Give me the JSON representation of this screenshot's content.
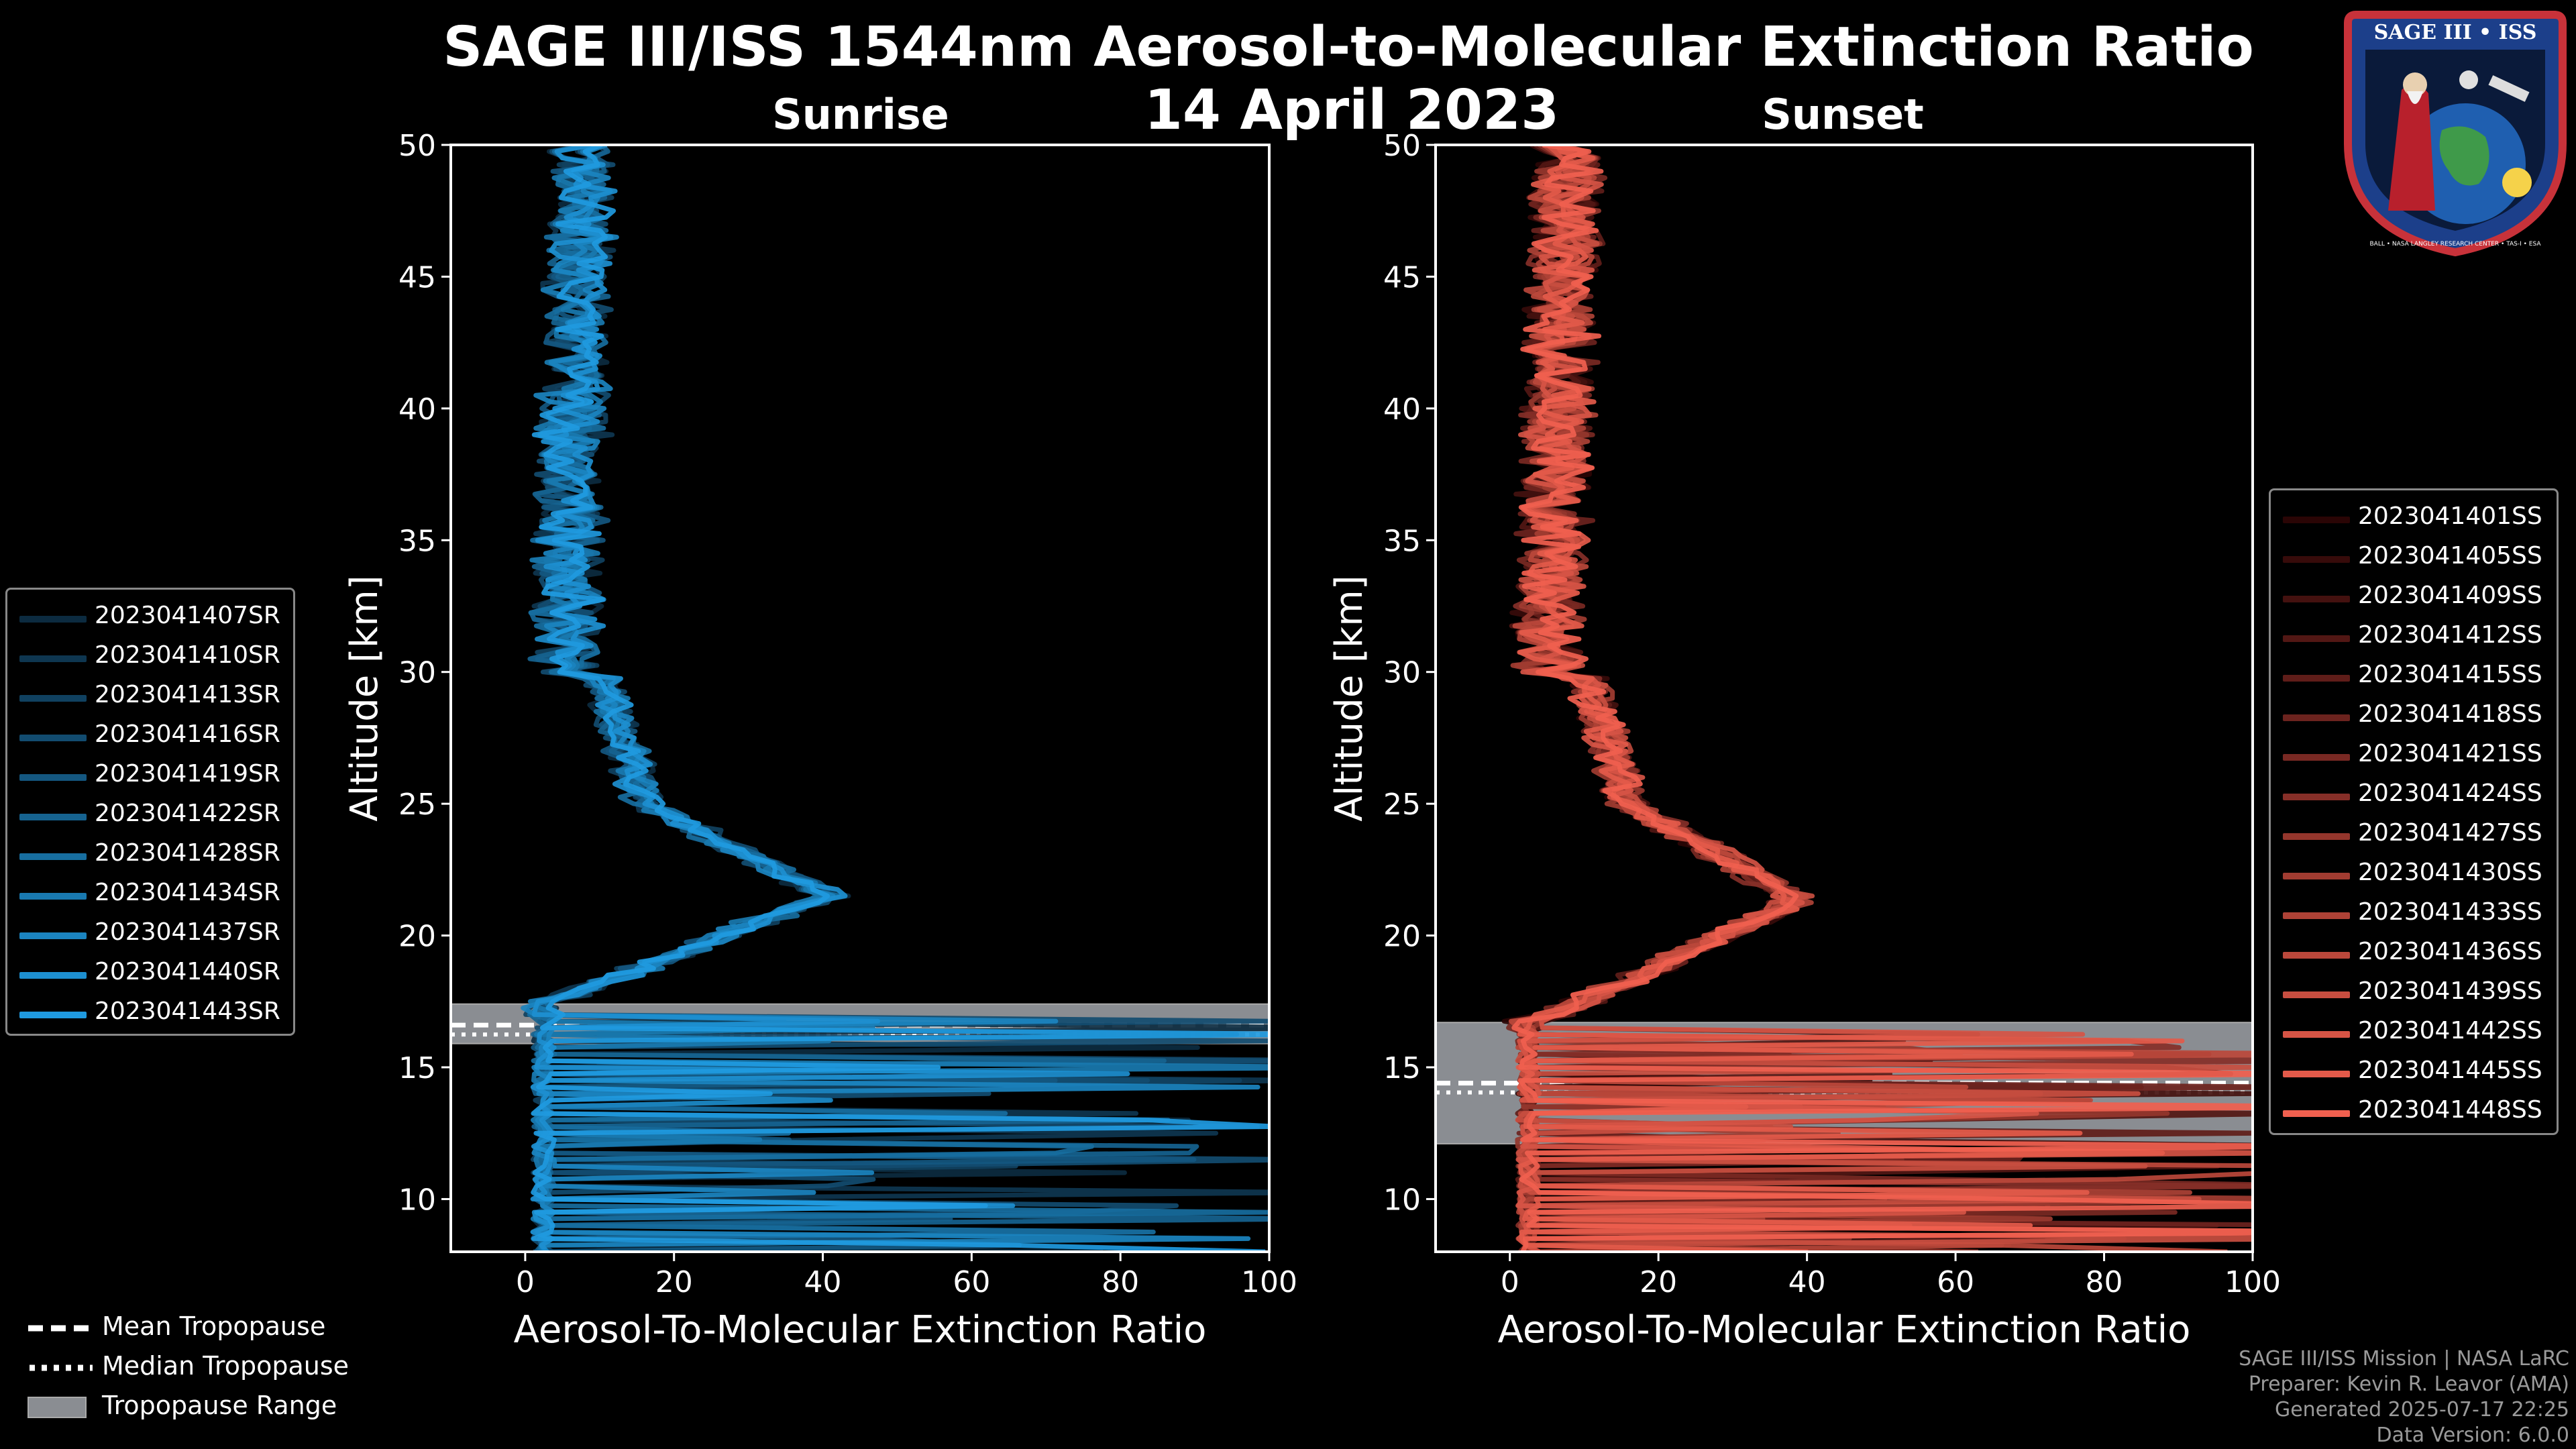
{
  "chart_data": {
    "type": "line",
    "title": "SAGE III/ISS 1544nm Aerosol-to-Molecular Extinction Ratio",
    "date": "14 April 2023",
    "panels": [
      {
        "name": "Sunrise",
        "title": "Sunrise",
        "xlabel": "Aerosol-To-Molecular Extinction Ratio",
        "ylabel": "Altitude [km]",
        "xlim": [
          -10,
          100
        ],
        "ylim": [
          8,
          50
        ],
        "xticks": [
          0,
          20,
          40,
          60,
          80,
          100
        ],
        "yticks": [
          10,
          15,
          20,
          25,
          30,
          35,
          40,
          45,
          50
        ],
        "tropopause": {
          "mean": 16.6,
          "median": 16.5,
          "range": [
            15.9,
            17.4
          ]
        },
        "profile_peak": {
          "altitude_km": 21.5,
          "ratio": 41
        },
        "series_color_start": "#0c2b40",
        "series_color_end": "#1f9ae0",
        "series": [
          {
            "name": "2023041407SR"
          },
          {
            "name": "2023041410SR"
          },
          {
            "name": "2023041413SR"
          },
          {
            "name": "2023041416SR"
          },
          {
            "name": "2023041419SR"
          },
          {
            "name": "2023041422SR"
          },
          {
            "name": "2023041428SR"
          },
          {
            "name": "2023041434SR"
          },
          {
            "name": "2023041437SR"
          },
          {
            "name": "2023041440SR"
          },
          {
            "name": "2023041443SR"
          }
        ]
      },
      {
        "name": "Sunset",
        "title": "Sunset",
        "xlabel": "Aerosol-To-Molecular Extinction Ratio",
        "ylabel": "Altitude [km]",
        "xlim": [
          -10,
          100
        ],
        "ylim": [
          8,
          50
        ],
        "xticks": [
          0,
          20,
          40,
          60,
          80,
          100
        ],
        "yticks": [
          10,
          15,
          20,
          25,
          30,
          35,
          40,
          45,
          50
        ],
        "tropopause": {
          "mean": 14.4,
          "median": 14.3,
          "range": [
            12.1,
            16.7
          ]
        },
        "profile_peak": {
          "altitude_km": 21.5,
          "ratio": 38
        },
        "series_color_start": "#2a0505",
        "series_color_end": "#f0604f",
        "series": [
          {
            "name": "2023041401SS"
          },
          {
            "name": "2023041405SS"
          },
          {
            "name": "2023041409SS"
          },
          {
            "name": "2023041412SS"
          },
          {
            "name": "2023041415SS"
          },
          {
            "name": "2023041418SS"
          },
          {
            "name": "2023041421SS"
          },
          {
            "name": "2023041424SS"
          },
          {
            "name": "2023041427SS"
          },
          {
            "name": "2023041430SS"
          },
          {
            "name": "2023041433SS"
          },
          {
            "name": "2023041436SS"
          },
          {
            "name": "2023041439SS"
          },
          {
            "name": "2023041442SS"
          },
          {
            "name": "2023041445SS"
          },
          {
            "name": "2023041448SS"
          }
        ]
      }
    ],
    "legend_entries": [
      "Mean Tropopause",
      "Median Tropopause",
      "Tropopause Range"
    ]
  },
  "footer": {
    "line1": "SAGE III/ISS Mission | NASA LaRC",
    "line2": "Preparer: Kevin R. Leavor (AMA)",
    "line3": "Generated 2025-07-17 22:25",
    "line4": "Data Version: 6.0.0"
  },
  "logo": {
    "top_text": "SAGE III • ISS",
    "bottom_text": "BALL • NASA LANGLEY RESEARCH CENTER • TAS-I • ESA"
  },
  "colors": {
    "background": "#000000",
    "axis": "#ffffff",
    "tropopause_range": "#8a8d92",
    "footer": "#9a9a9a"
  }
}
